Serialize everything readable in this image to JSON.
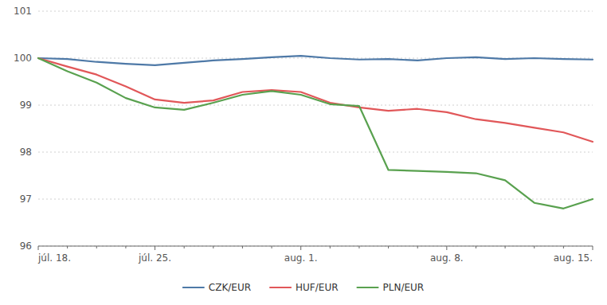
{
  "chart_data": {
    "type": "line",
    "categories": [
      "júl. 18.",
      null,
      null,
      null,
      "júl. 25.",
      null,
      null,
      null,
      null,
      "aug. 1.",
      null,
      null,
      null,
      null,
      "aug. 8.",
      null,
      null,
      null,
      null,
      "aug. 15."
    ],
    "series": [
      {
        "name": "CZK/EUR",
        "values": [
          100.0,
          99.98,
          99.92,
          99.88,
          99.85,
          99.9,
          99.95,
          99.98,
          100.02,
          100.05,
          100.0,
          99.97,
          99.98,
          99.95,
          100.0,
          100.02,
          99.98,
          100.0,
          99.98,
          99.97
        ]
      },
      {
        "name": "HUF/EUR",
        "values": [
          100.0,
          99.82,
          99.65,
          99.4,
          99.12,
          99.05,
          99.1,
          99.28,
          99.32,
          99.28,
          99.05,
          98.95,
          98.88,
          98.92,
          98.85,
          98.7,
          98.62,
          98.52,
          98.42,
          98.22
        ]
      },
      {
        "name": "PLN/EUR",
        "values": [
          100.0,
          99.72,
          99.48,
          99.15,
          98.95,
          98.9,
          99.05,
          99.22,
          99.3,
          99.22,
          99.02,
          98.98,
          97.62,
          97.6,
          97.58,
          97.55,
          97.4,
          96.92,
          96.8,
          97.0
        ]
      }
    ],
    "ylim": [
      96,
      101
    ],
    "yticks": [
      96,
      97,
      98,
      99,
      100,
      101
    ],
    "grid": true,
    "legend": "bottom"
  }
}
